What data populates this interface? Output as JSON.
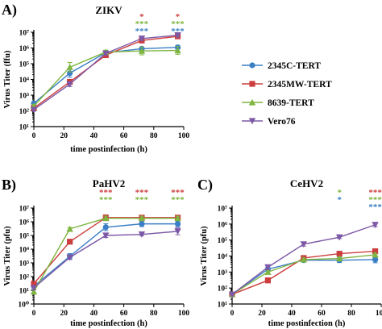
{
  "colors": {
    "2345C-TERT": "#3a7ec6",
    "2345MW-TERT": "#cc3d3d",
    "8639-TERT": "#7fb540",
    "Vero76": "#7d58a6"
  },
  "chart_data": [
    {
      "type": "line",
      "panel_label": "A)",
      "title": "ZIKV",
      "xlabel": "time postinfection (h)",
      "ylabel": "Virus Titer (ffu)",
      "x": [
        0,
        24,
        48,
        72,
        96
      ],
      "xticks": [
        0,
        20,
        40,
        60,
        80,
        100
      ],
      "xlim": [
        0,
        100
      ],
      "ylim": [
        10,
        10000000
      ],
      "yscale": "log",
      "ytick_labels": [
        "10¹",
        "10²",
        "10³",
        "10⁴",
        "10⁵",
        "10⁶",
        "10⁷"
      ],
      "legend": "right",
      "series": [
        {
          "name": "2345C-TERT",
          "marker": "circle",
          "values": [
            300,
            25000,
            500000,
            900000,
            1100000
          ],
          "err": [
            0.1,
            0.25,
            0.1,
            0.1,
            0.12
          ]
        },
        {
          "name": "2345MW-TERT",
          "marker": "square",
          "values": [
            150,
            7000,
            350000,
            3000000,
            5500000
          ],
          "err": [
            0.1,
            0.15,
            0.1,
            0.15,
            0.12
          ]
        },
        {
          "name": "8639-TERT",
          "marker": "triangle-up",
          "values": [
            200,
            60000,
            550000,
            650000,
            700000
          ],
          "err": [
            0.1,
            0.3,
            0.12,
            0.25,
            0.25
          ]
        },
        {
          "name": "Vero76",
          "marker": "triangle-down",
          "values": [
            120,
            5000,
            450000,
            4000000,
            6500000
          ],
          "err": [
            0.1,
            0.15,
            0.1,
            0.12,
            0.12
          ]
        }
      ],
      "significance": [
        {
          "x": 72,
          "rows": [
            {
              "text": "*",
              "series": "2345MW-TERT"
            },
            {
              "text": "***",
              "series": "8639-TERT"
            },
            {
              "text": "***",
              "series": "2345C-TERT"
            }
          ]
        },
        {
          "x": 96,
          "rows": [
            {
              "text": "*",
              "series": "2345MW-TERT"
            },
            {
              "text": "***",
              "series": "8639-TERT"
            },
            {
              "text": "***",
              "series": "2345C-TERT"
            }
          ]
        }
      ]
    },
    {
      "type": "line",
      "panel_label": "B)",
      "title": "PaHV2",
      "xlabel": "time postinfection (h)",
      "ylabel": "Virus Titer (pfu)",
      "x": [
        0,
        24,
        48,
        72,
        96
      ],
      "xticks": [
        0,
        20,
        40,
        60,
        80,
        100
      ],
      "xlim": [
        0,
        100
      ],
      "ylim": [
        1,
        10000000
      ],
      "yscale": "log",
      "ytick_labels": [
        "10⁰",
        "10¹",
        "10²",
        "10³",
        "10⁴",
        "10⁵",
        "10⁶",
        "10⁷"
      ],
      "series": [
        {
          "name": "2345C-TERT",
          "marker": "circle",
          "values": [
            20,
            3000,
            400000,
            700000,
            700000
          ],
          "err": [
            0.15,
            0.2,
            0.25,
            0.2,
            0.2
          ]
        },
        {
          "name": "2345MW-TERT",
          "marker": "square",
          "values": [
            30,
            35000,
            2000000,
            2000000,
            2000000
          ],
          "err": [
            0.15,
            0.1,
            0.2,
            0.15,
            0.15
          ]
        },
        {
          "name": "8639-TERT",
          "marker": "triangle-up",
          "values": [
            8,
            300000,
            1800000,
            1800000,
            1800000
          ],
          "err": [
            0.15,
            0.1,
            0.15,
            0.15,
            0.15
          ]
        },
        {
          "name": "Vero76",
          "marker": "triangle-down",
          "values": [
            15,
            2500,
            100000,
            120000,
            200000
          ],
          "err": [
            0.15,
            0.15,
            0.15,
            0.1,
            0.25
          ]
        }
      ],
      "significance": [
        {
          "x": 48,
          "rows": [
            {
              "text": "***",
              "series": "2345MW-TERT"
            },
            {
              "text": "***",
              "series": "8639-TERT"
            }
          ]
        },
        {
          "x": 72,
          "rows": [
            {
              "text": "***",
              "series": "2345MW-TERT"
            },
            {
              "text": "***",
              "series": "8639-TERT"
            }
          ]
        },
        {
          "x": 96,
          "rows": [
            {
              "text": "***",
              "series": "2345MW-TERT"
            },
            {
              "text": "***",
              "series": "8639-TERT"
            }
          ]
        }
      ]
    },
    {
      "type": "line",
      "panel_label": "C)",
      "title": "CeHV2",
      "xlabel": "time postinfection (h)",
      "ylabel": "Virus Titer (pfu)",
      "x": [
        0,
        24,
        48,
        72,
        96
      ],
      "xticks": [
        0,
        20,
        40,
        60,
        80,
        100
      ],
      "xlim": [
        0,
        100
      ],
      "ylim": [
        10,
        10000000
      ],
      "yscale": "log",
      "ytick_labels": [
        "10¹",
        "10²",
        "10³",
        "10⁴",
        "10⁵",
        "10⁶",
        "10⁷"
      ],
      "series": [
        {
          "name": "2345C-TERT",
          "marker": "circle",
          "values": [
            40,
            1500,
            5500,
            5500,
            6000
          ],
          "err": [
            0.1,
            0.12,
            0.12,
            0.15,
            0.2
          ]
        },
        {
          "name": "2345MW-TERT",
          "marker": "square",
          "values": [
            40,
            300,
            7500,
            14000,
            20000
          ],
          "err": [
            0.1,
            0.15,
            0.1,
            0.1,
            0.1
          ]
        },
        {
          "name": "8639-TERT",
          "marker": "triangle-up",
          "values": [
            40,
            1000,
            6000,
            7000,
            12000
          ],
          "err": [
            0.1,
            0.12,
            0.1,
            0.1,
            0.1
          ]
        },
        {
          "name": "Vero76",
          "marker": "triangle-down",
          "values": [
            40,
            2000,
            55000,
            150000,
            900000
          ],
          "err": [
            0.1,
            0.15,
            0.12,
            0.08,
            0.12
          ]
        }
      ],
      "significance": [
        {
          "x": 72,
          "rows": [
            {
              "text": "*",
              "series": "8639-TERT"
            },
            {
              "text": "*",
              "series": "2345C-TERT"
            }
          ]
        },
        {
          "x": 96,
          "rows": [
            {
              "text": "***",
              "series": "2345MW-TERT"
            },
            {
              "text": "***",
              "series": "8639-TERT"
            },
            {
              "text": "***",
              "series": "2345C-TERT"
            }
          ]
        }
      ]
    }
  ]
}
